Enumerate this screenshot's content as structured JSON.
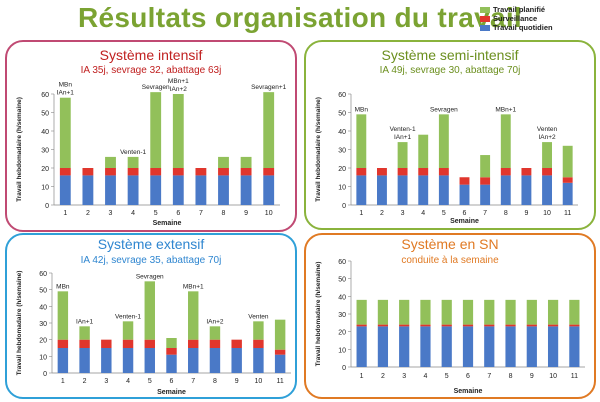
{
  "page": {
    "title": "Résultats organisation du travail"
  },
  "legend": {
    "items": [
      {
        "label": "Travail planifié",
        "color": "#92c05a"
      },
      {
        "label": "Surveillance",
        "color": "#e0362d"
      },
      {
        "label": "Travail quotidien",
        "color": "#4a79c7"
      }
    ]
  },
  "panels": [
    {
      "title": "Système intensif",
      "subtitle": "IA 35j,  sevrage 32, abattage 63j",
      "border_color": "#c04a73",
      "title_color": "#c02020",
      "subtitle_color": "#c02020"
    },
    {
      "title": "Système semi-intensif",
      "subtitle": "IA 49j,  sevrage 30, abattage 70j",
      "border_color": "#8ab33c",
      "title_color": "#6b8f1e",
      "subtitle_color": "#6b8f1e"
    },
    {
      "title": "Système extensif",
      "subtitle": "IA 42j,  sevrage 35, abattage 70j",
      "border_color": "#2fa0d8",
      "title_color": "#2f86d0",
      "subtitle_color": "#2f86d0"
    },
    {
      "title": "Système en SN",
      "subtitle": "conduite à la semaine",
      "border_color": "#e07a24",
      "title_color": "#e07a24",
      "subtitle_color": "#e07a24"
    }
  ],
  "chart_data": [
    {
      "type": "bar",
      "stacked": true,
      "xlabel": "Semaine",
      "ylabel": "Travail hebdomadaire (h/semaine)",
      "ylim": [
        0,
        60
      ],
      "yticks": [
        0,
        10,
        20,
        30,
        40,
        50,
        60
      ],
      "categories": [
        "1",
        "2",
        "3",
        "4",
        "5",
        "6",
        "7",
        "8",
        "9",
        "10"
      ],
      "series": [
        {
          "name": "Travail quotidien",
          "values": [
            16,
            16,
            16,
            16,
            16,
            16,
            16,
            16,
            16,
            16
          ]
        },
        {
          "name": "Surveillance",
          "values": [
            4,
            4,
            4,
            4,
            4,
            4,
            4,
            4,
            4,
            4
          ]
        },
        {
          "name": "Travail planifié",
          "values": [
            38,
            0,
            6,
            6,
            41,
            40,
            0,
            6,
            6,
            41
          ]
        }
      ],
      "annotations": [
        {
          "index": 0,
          "lines": [
            "MBn",
            "IAn+1"
          ]
        },
        {
          "index": 3,
          "lines": [
            "Venten-1"
          ]
        },
        {
          "index": 4,
          "lines": [
            "Sevragen"
          ]
        },
        {
          "index": 5,
          "lines": [
            "MBn+1",
            "IAn+2"
          ]
        },
        {
          "index": 9,
          "lines": [
            "Sevragen+1"
          ]
        }
      ]
    },
    {
      "type": "bar",
      "stacked": true,
      "xlabel": "Semaine",
      "ylabel": "Travail hebdomadaire (h/semaine)",
      "ylim": [
        0,
        60
      ],
      "yticks": [
        0,
        10,
        20,
        30,
        40,
        50,
        60
      ],
      "categories": [
        "1",
        "2",
        "3",
        "4",
        "5",
        "6",
        "7",
        "8",
        "9",
        "10",
        "11"
      ],
      "series": [
        {
          "name": "Travail quotidien",
          "values": [
            16,
            16,
            16,
            16,
            16,
            11,
            11,
            16,
            16,
            16,
            12
          ]
        },
        {
          "name": "Surveillance",
          "values": [
            4,
            4,
            4,
            4,
            4,
            4,
            4,
            4,
            4,
            4,
            3
          ]
        },
        {
          "name": "Travail planifié",
          "values": [
            29,
            0,
            14,
            18,
            29,
            0,
            12,
            29,
            0,
            14,
            17
          ]
        }
      ],
      "annotations": [
        {
          "index": 0,
          "lines": [
            "MBn"
          ]
        },
        {
          "index": 2,
          "lines": [
            "Venten-1",
            "IAn+1"
          ]
        },
        {
          "index": 4,
          "lines": [
            "Sevragen"
          ]
        },
        {
          "index": 7,
          "lines": [
            "MBn+1"
          ]
        },
        {
          "index": 9,
          "lines": [
            "Venten",
            "IAn+2"
          ]
        }
      ]
    },
    {
      "type": "bar",
      "stacked": true,
      "xlabel": "Semaine",
      "ylabel": "Travail hebdomadaire (h/semaine)",
      "ylim": [
        0,
        60
      ],
      "yticks": [
        0,
        10,
        20,
        30,
        40,
        50,
        60
      ],
      "categories": [
        "1",
        "2",
        "3",
        "4",
        "5",
        "6",
        "7",
        "8",
        "9",
        "10",
        "11"
      ],
      "series": [
        {
          "name": "Travail quotidien",
          "values": [
            15,
            15,
            15,
            15,
            15,
            11,
            15,
            15,
            15,
            15,
            11
          ]
        },
        {
          "name": "Surveillance",
          "values": [
            5,
            5,
            5,
            5,
            5,
            4,
            5,
            5,
            5,
            5,
            3
          ]
        },
        {
          "name": "Travail planifié",
          "values": [
            29,
            8,
            0,
            11,
            35,
            6,
            29,
            8,
            0,
            11,
            18
          ]
        }
      ],
      "annotations": [
        {
          "index": 0,
          "lines": [
            "MBn"
          ]
        },
        {
          "index": 1,
          "lines": [
            "IAn+1"
          ]
        },
        {
          "index": 3,
          "lines": [
            "Venten-1"
          ]
        },
        {
          "index": 4,
          "lines": [
            "Sevragen"
          ]
        },
        {
          "index": 6,
          "lines": [
            "MBn+1"
          ]
        },
        {
          "index": 7,
          "lines": [
            "IAn+2"
          ]
        },
        {
          "index": 9,
          "lines": [
            "Venten"
          ]
        }
      ]
    },
    {
      "type": "bar",
      "stacked": true,
      "xlabel": "Semaine",
      "ylabel": "Travail hebdomadaire (h/semaine)",
      "ylim": [
        0,
        60
      ],
      "yticks": [
        0,
        10,
        20,
        30,
        40,
        50,
        60
      ],
      "categories": [
        "1",
        "2",
        "3",
        "4",
        "5",
        "6",
        "7",
        "8",
        "9",
        "10",
        "11"
      ],
      "series": [
        {
          "name": "Travail quotidien",
          "values": [
            23,
            23,
            23,
            23,
            23,
            23,
            23,
            23,
            23,
            23,
            23
          ]
        },
        {
          "name": "Surveillance",
          "values": [
            1,
            1,
            1,
            1,
            1,
            1,
            1,
            1,
            1,
            1,
            1
          ]
        },
        {
          "name": "Travail planifié",
          "values": [
            14,
            14,
            14,
            14,
            14,
            14,
            14,
            14,
            14,
            14,
            14
          ]
        }
      ],
      "annotations": []
    }
  ]
}
